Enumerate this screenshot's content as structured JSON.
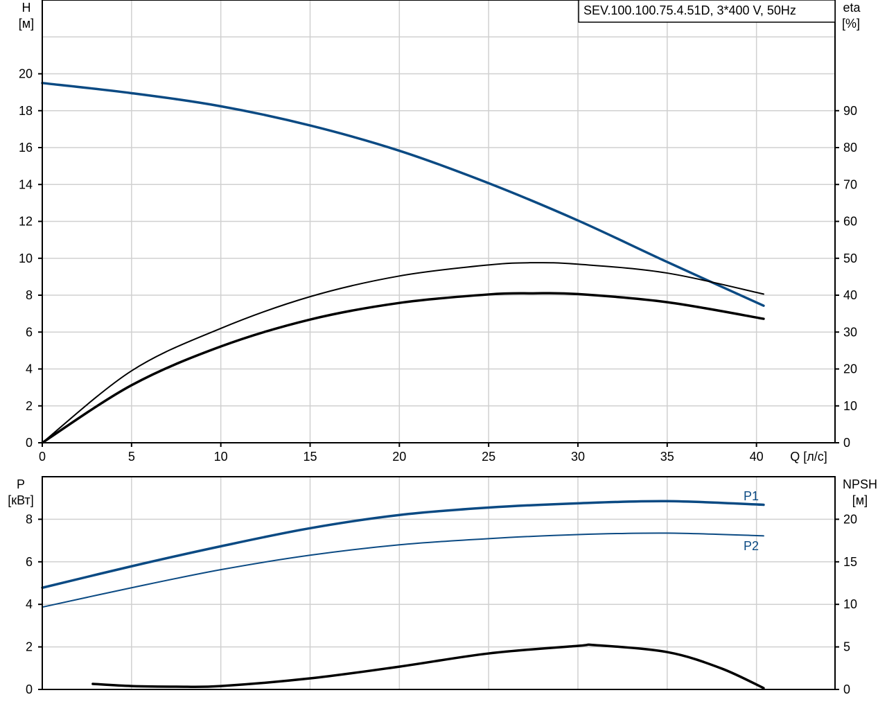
{
  "title": "SEV.100.100.75.4.51D, 3*400 V, 50Hz",
  "colors": {
    "blue": "#0b4a83",
    "black": "#000000",
    "grid": "#d0d0d0"
  },
  "chart_data": [
    {
      "type": "line",
      "xlabel": "Q [л/с]",
      "ylabel_left": [
        "H",
        "[м]"
      ],
      "ylabel_right": [
        "eta",
        "[%]"
      ],
      "xlim": [
        0,
        44.4
      ],
      "ylim_left": [
        0,
        24
      ],
      "ylim_right": [
        0,
        120
      ],
      "x_ticks": [
        0,
        5,
        10,
        15,
        20,
        25,
        30,
        35,
        40
      ],
      "y_ticks_left": [
        0,
        2,
        4,
        6,
        8,
        10,
        12,
        14,
        16,
        18,
        20
      ],
      "y_ticks_right": [
        0,
        10,
        20,
        30,
        40,
        50,
        60,
        70,
        80,
        90
      ],
      "grid": true,
      "series": [
        {
          "axis": "left",
          "color": "#0b4a83",
          "width": 3.5,
          "x": [
            0,
            5,
            10,
            15,
            20,
            25,
            30,
            35,
            40.4
          ],
          "y": [
            19.5,
            18.95,
            18.24,
            17.2,
            15.83,
            14.07,
            12.05,
            9.8,
            7.43
          ]
        },
        {
          "axis": "right",
          "color": "#000000",
          "width": 2,
          "x": [
            0,
            5,
            10,
            15,
            20,
            25,
            27.5,
            30,
            35,
            40.4
          ],
          "y": [
            0,
            19.5,
            31,
            39.6,
            45.2,
            48.2,
            48.8,
            48.4,
            46,
            40.3
          ]
        },
        {
          "axis": "right",
          "color": "#000000",
          "width": 3.5,
          "x": [
            0,
            5,
            10,
            15,
            20,
            25,
            27.5,
            30,
            35,
            40.4
          ],
          "y": [
            0,
            15.6,
            26.1,
            33.4,
            37.9,
            40.2,
            40.5,
            40.3,
            38.1,
            33.6
          ]
        }
      ]
    },
    {
      "type": "line",
      "ylabel_left": [
        "P",
        "[кВт]"
      ],
      "ylabel_right": [
        "NPSH",
        "[м]"
      ],
      "xlim": [
        0,
        44.4
      ],
      "ylim_left": [
        0,
        10
      ],
      "ylim_right": [
        0,
        25
      ],
      "y_ticks_left": [
        0,
        2,
        4,
        6,
        8
      ],
      "y_ticks_right": [
        0,
        5,
        10,
        15,
        20
      ],
      "grid": true,
      "series": [
        {
          "name": "P1",
          "axis": "left",
          "color": "#0b4a83",
          "width": 3.5,
          "x": [
            0,
            5,
            10,
            15,
            20,
            25,
            30,
            35,
            40.4
          ],
          "y": [
            4.78,
            5.79,
            6.73,
            7.58,
            8.2,
            8.55,
            8.75,
            8.85,
            8.68
          ]
        },
        {
          "name": "P2",
          "axis": "left",
          "color": "#0b4a83",
          "width": 2,
          "x": [
            0,
            5,
            10,
            15,
            20,
            25,
            30,
            35,
            40.4
          ],
          "y": [
            3.87,
            4.78,
            5.63,
            6.31,
            6.8,
            7.09,
            7.28,
            7.35,
            7.22
          ]
        },
        {
          "axis": "right",
          "color": "#000000",
          "width": 3.5,
          "x": [
            2.83,
            5,
            7.5,
            10,
            15,
            20,
            25,
            30,
            31,
            35,
            38,
            40.4
          ],
          "y": [
            0.65,
            0.4,
            0.33,
            0.4,
            1.3,
            2.68,
            4.23,
            5.12,
            5.2,
            4.39,
            2.5,
            0.16
          ]
        }
      ]
    }
  ]
}
